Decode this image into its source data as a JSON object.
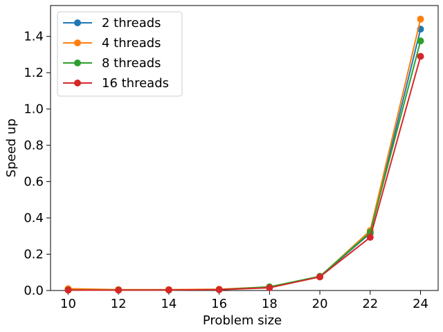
{
  "chart_data": {
    "type": "line",
    "xlabel": "Problem size",
    "ylabel": "Speed up",
    "x": [
      10,
      12,
      14,
      16,
      18,
      20,
      22,
      24
    ],
    "xticks": [
      10,
      12,
      14,
      16,
      18,
      20,
      22,
      24
    ],
    "yticks": [
      0.0,
      0.2,
      0.4,
      0.6,
      0.8,
      1.0,
      1.2,
      1.4
    ],
    "xlim": [
      9.3,
      24.7
    ],
    "ylim": [
      0.0,
      1.57
    ],
    "grid": false,
    "legend_position": "top-left",
    "series": [
      {
        "name": "2 threads",
        "color": "#1f77b4",
        "values": [
          0.005,
          0.003,
          0.003,
          0.005,
          0.018,
          0.076,
          0.315,
          1.44
        ]
      },
      {
        "name": "4 threads",
        "color": "#ff7f0e",
        "values": [
          0.01,
          0.005,
          0.005,
          0.007,
          0.02,
          0.076,
          0.33,
          1.495
        ]
      },
      {
        "name": "8 threads",
        "color": "#2ca02c",
        "values": [
          0.003,
          0.003,
          0.003,
          0.005,
          0.02,
          0.078,
          0.32,
          1.375
        ]
      },
      {
        "name": "16 threads",
        "color": "#d62728",
        "values": [
          0.002,
          0.002,
          0.003,
          0.005,
          0.015,
          0.075,
          0.293,
          1.29
        ]
      }
    ]
  }
}
